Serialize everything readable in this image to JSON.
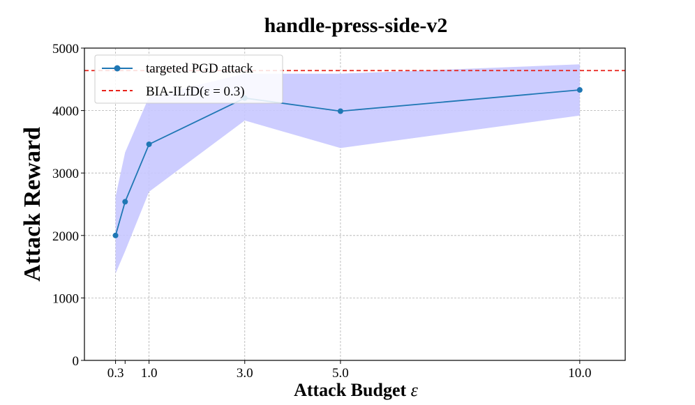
{
  "chart_data": {
    "type": "line",
    "title": "handle-press-side-v2",
    "xlabel": "Attack Budget",
    "xlabel_symbol": "ε",
    "ylabel": "Attack Reward",
    "xlim": [
      -0.35,
      10.95
    ],
    "ylim": [
      0,
      5000
    ],
    "xticks": [
      0.3,
      0.5,
      1.0,
      3.0,
      5.0,
      10.0
    ],
    "xtick_labels": [
      "0.3",
      "",
      "1.0",
      "3.0",
      "5.0",
      "10.0"
    ],
    "yticks": [
      0,
      1000,
      2000,
      3000,
      4000,
      5000
    ],
    "ytick_labels": [
      "0",
      "1000",
      "2000",
      "3000",
      "4000",
      "5000"
    ],
    "grid": true,
    "legend_position": "top-left",
    "series": [
      {
        "name": "targeted PGD attack",
        "color": "#1f77b4",
        "x": [
          0.3,
          0.5,
          1.0,
          3.0,
          5.0,
          10.0
        ],
        "y": [
          2000,
          2540,
          3460,
          4200,
          3990,
          4330
        ],
        "band_upper": [
          2620,
          3330,
          4220,
          4590,
          4590,
          4740
        ],
        "band_lower": [
          1390,
          1750,
          2700,
          3840,
          3400,
          3920
        ],
        "band_color": "#c8c8ff"
      },
      {
        "name": "BIA-ILfD",
        "legend_suffix": "(ε = 0.3)",
        "color": "#e8221a",
        "style": "dashed",
        "y_constant": 4640
      }
    ]
  }
}
